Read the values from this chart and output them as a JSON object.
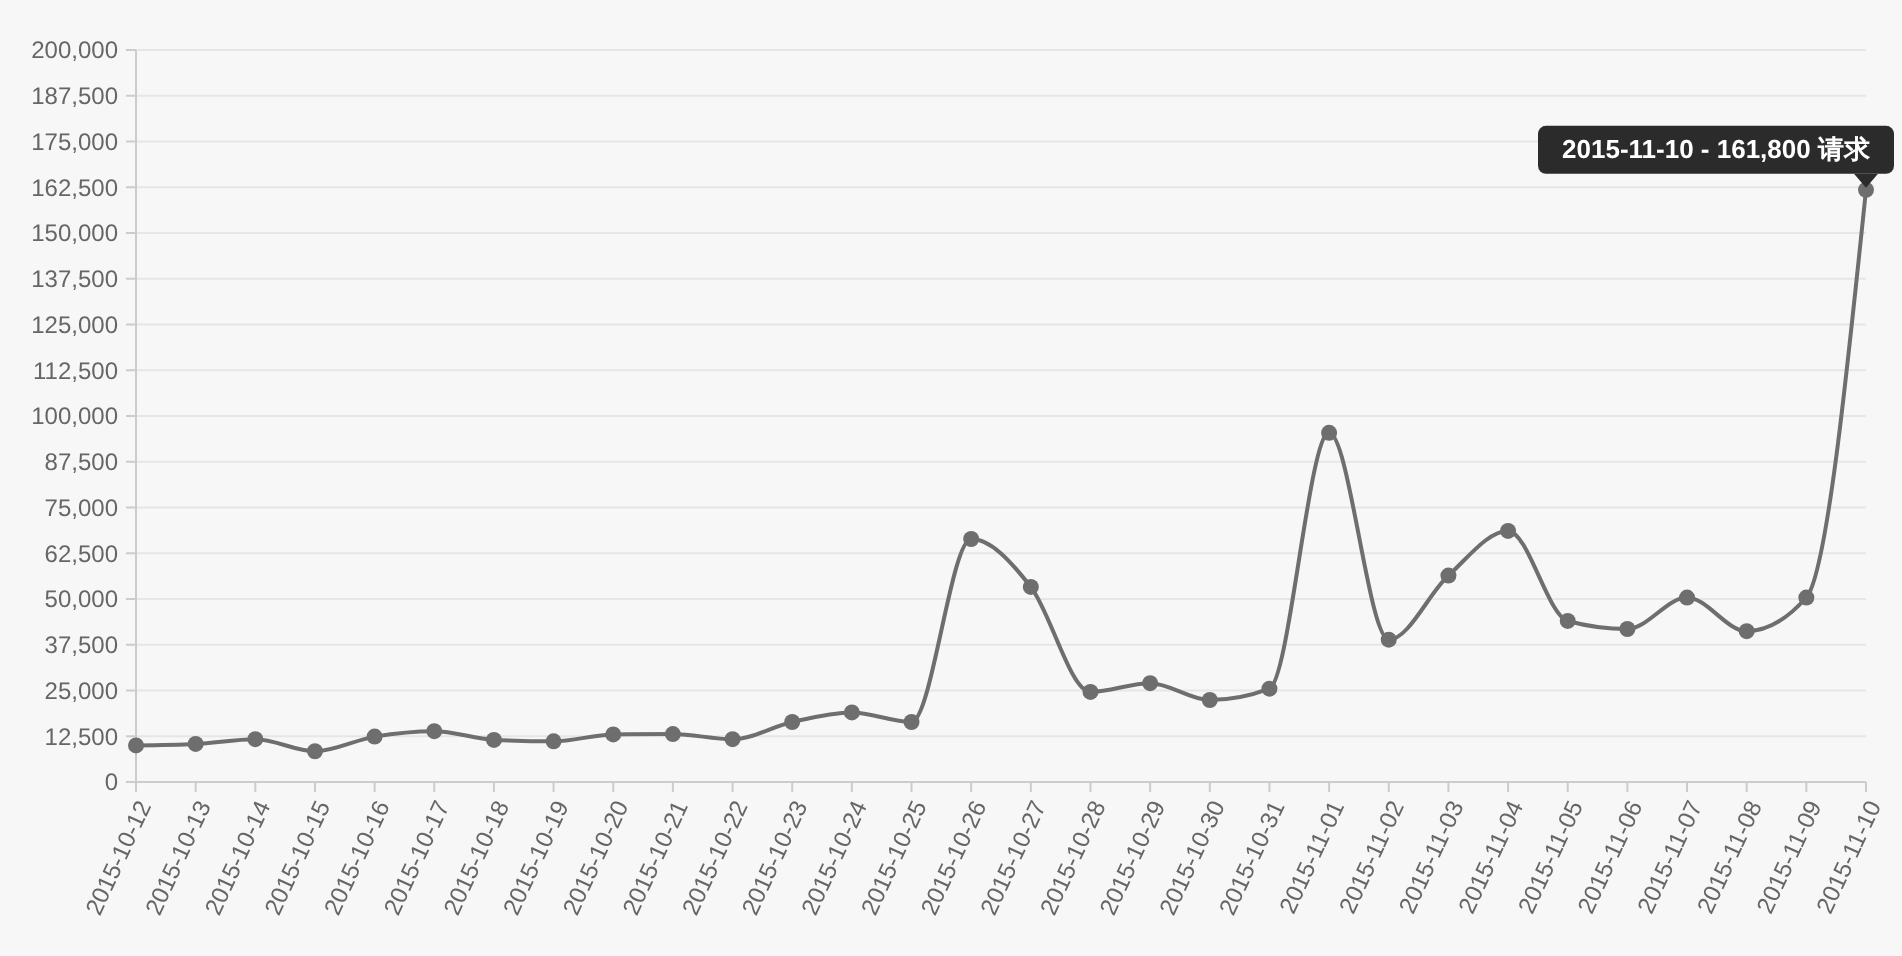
{
  "chart_data": {
    "type": "line",
    "categories": [
      "2015-10-12",
      "2015-10-13",
      "2015-10-14",
      "2015-10-15",
      "2015-10-16",
      "2015-10-17",
      "2015-10-18",
      "2015-10-19",
      "2015-10-20",
      "2015-10-21",
      "2015-10-22",
      "2015-10-23",
      "2015-10-24",
      "2015-10-25",
      "2015-10-26",
      "2015-10-27",
      "2015-10-28",
      "2015-10-29",
      "2015-10-30",
      "2015-10-31",
      "2015-11-01",
      "2015-11-02",
      "2015-11-03",
      "2015-11-04",
      "2015-11-05",
      "2015-11-06",
      "2015-11-07",
      "2015-11-08",
      "2015-11-09",
      "2015-11-10"
    ],
    "series": [
      {
        "color": "#6e6e6e",
        "values": [
          10000,
          10400,
          11700,
          8400,
          12400,
          13900,
          11500,
          11100,
          13000,
          13100,
          11700,
          16400,
          19000,
          16400,
          66400,
          53300,
          24600,
          27000,
          22400,
          25500,
          95400,
          38900,
          56400,
          68600,
          44000,
          41800,
          50400,
          41200,
          50400,
          161800
        ]
      }
    ],
    "ylim": [
      0,
      200000
    ],
    "yticks": [
      {
        "value": 0,
        "label": "0"
      },
      {
        "value": 12500,
        "label": "12,500"
      },
      {
        "value": 25000,
        "label": "25,000"
      },
      {
        "value": 37500,
        "label": "37,500"
      },
      {
        "value": 50000,
        "label": "50,000"
      },
      {
        "value": 62500,
        "label": "62,500"
      },
      {
        "value": 75000,
        "label": "75,000"
      },
      {
        "value": 87500,
        "label": "87,500"
      },
      {
        "value": 100000,
        "label": "100,000"
      },
      {
        "value": 112500,
        "label": "112,500"
      },
      {
        "value": 125000,
        "label": "125,000"
      },
      {
        "value": 137500,
        "label": "137,500"
      },
      {
        "value": 150000,
        "label": "150,000"
      },
      {
        "value": 162500,
        "label": "162,500"
      },
      {
        "value": 175000,
        "label": "175,000"
      },
      {
        "value": 187500,
        "label": "187,500"
      },
      {
        "value": 200000,
        "label": "200,000"
      }
    ],
    "grid": "y",
    "marker": "circle",
    "line_style": "solid",
    "annotations": [
      {
        "text": "2015-11-10 - 161,800 请求",
        "x": "2015-11-10",
        "y": 161800
      }
    ]
  }
}
